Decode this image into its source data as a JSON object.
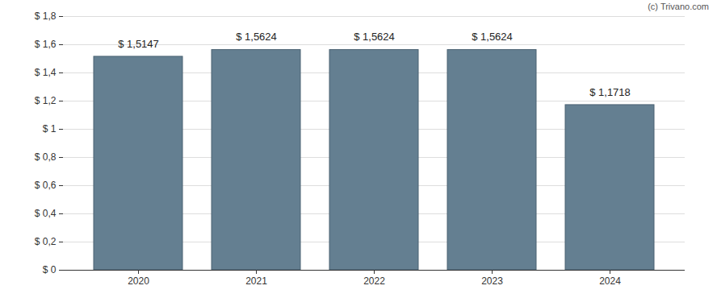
{
  "chart_data": {
    "type": "bar",
    "categories": [
      "2020",
      "2021",
      "2022",
      "2023",
      "2024"
    ],
    "values": [
      1.5147,
      1.5624,
      1.5624,
      1.5624,
      1.1718
    ],
    "value_labels": [
      "$ 1,5147",
      "$ 1,5624",
      "$ 1,5624",
      "$ 1,5624",
      "$ 1,1718"
    ],
    "data_labels": true,
    "color": "#647f91",
    "ylim": [
      0,
      1.8
    ],
    "yticks": [
      {
        "value": 0,
        "label": "$ 0"
      },
      {
        "value": 0.2,
        "label": "$ 0,2"
      },
      {
        "value": 0.4,
        "label": "$ 0,4"
      },
      {
        "value": 0.6,
        "label": "$ 0,6"
      },
      {
        "value": 0.8,
        "label": "$ 0,8"
      },
      {
        "value": 1,
        "label": "$ 1"
      },
      {
        "value": 1.2,
        "label": "$ 1,2"
      },
      {
        "value": 1.4,
        "label": "$ 1,4"
      },
      {
        "value": 1.6,
        "label": "$ 1,6"
      },
      {
        "value": 1.8,
        "label": "$ 1,8"
      }
    ],
    "grid": true,
    "annotations": [
      "(c) Trivano.com"
    ]
  }
}
